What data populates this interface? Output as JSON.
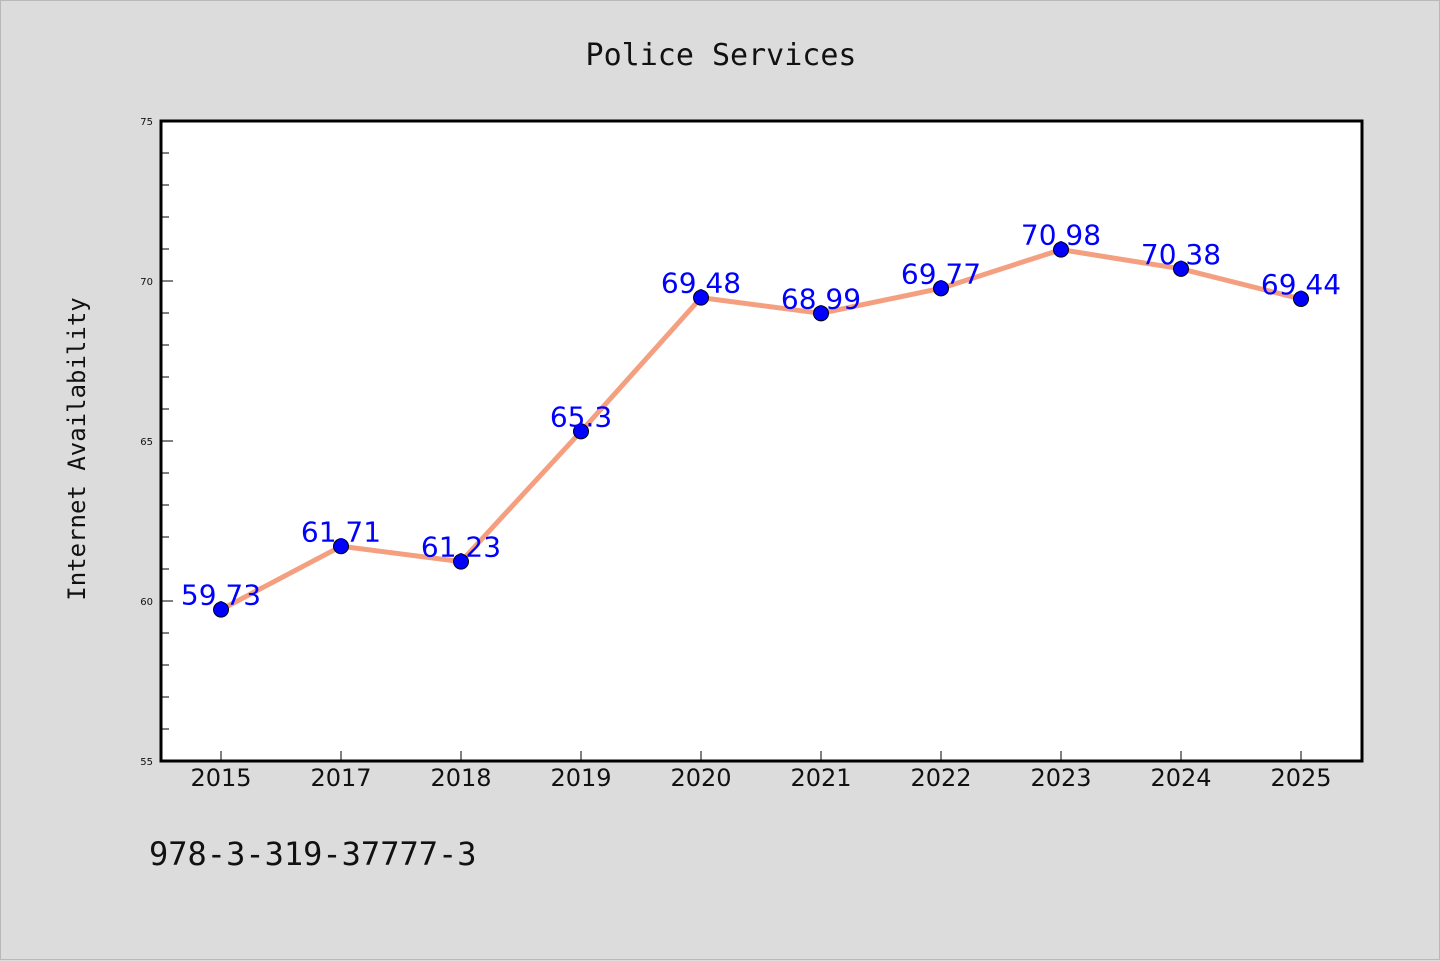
{
  "chart_data": {
    "type": "line",
    "title": "Police Services",
    "xlabel": "",
    "ylabel": "Internet Availability",
    "categories": [
      "2015",
      "2017",
      "2018",
      "2019",
      "2020",
      "2021",
      "2022",
      "2023",
      "2024",
      "2025"
    ],
    "values": [
      59.73,
      61.71,
      61.23,
      65.3,
      69.48,
      68.99,
      69.77,
      70.98,
      70.38,
      69.44
    ],
    "data_labels": [
      "59.73",
      "61.71",
      "61.23",
      "65.3",
      "69.48",
      "68.99",
      "69.77",
      "70.98",
      "70.38",
      "69.44"
    ],
    "ylim": [
      55,
      75
    ],
    "yticks": [
      55,
      60,
      65,
      70,
      75
    ],
    "grid": false,
    "line_color": "#f4a080",
    "marker_color": "#0000ff",
    "label_color": "#0000ff"
  },
  "footer_text": "978-3-319-37777-3"
}
